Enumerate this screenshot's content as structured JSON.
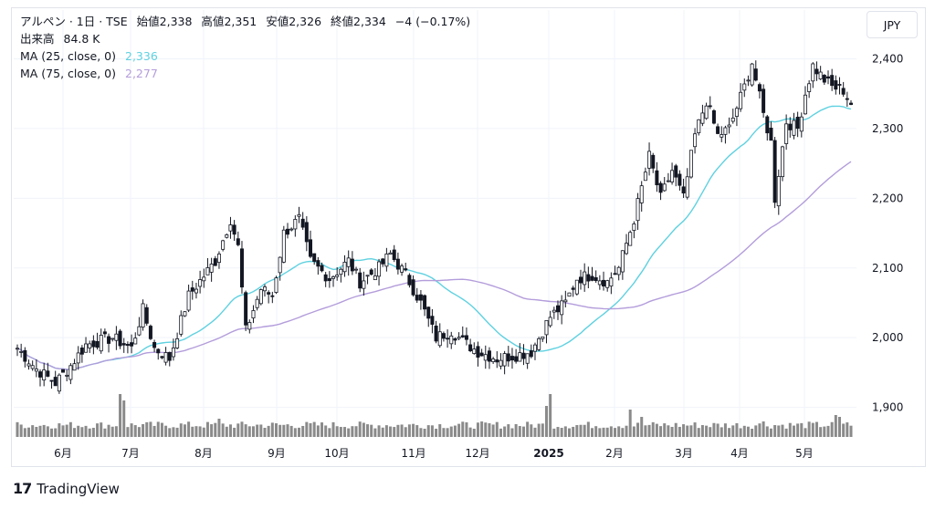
{
  "legend": {
    "symbol": "アルペン · 1日 · TSE",
    "open_label": "始値",
    "open": "2,338",
    "high_label": "高値",
    "high": "2,351",
    "low_label": "安値",
    "low": "2,326",
    "close_label": "終値",
    "close": "2,334",
    "change": "−4 (−0.17%)",
    "volume_label": "出来高",
    "volume": "84.8 K",
    "ma25_label": "MA (25, close, 0)",
    "ma25_value": "2,336",
    "ma75_label": "MA (75, close, 0)",
    "ma75_value": "2,277"
  },
  "currency": "JPY",
  "footer": {
    "logo_mark": "17",
    "logo_text": "TradingView"
  },
  "colors": {
    "candle_up": "#ffffff",
    "candle_down": "#131722",
    "ma25": "#5fd1e0",
    "ma75": "#b39ddb",
    "volume": "#8a8a8a",
    "grid": "#f0f3fa"
  },
  "chart_data": {
    "type": "candlestick",
    "title": "アルペン · 1日 · TSE",
    "y_ticks": [
      1900,
      2000,
      2100,
      2200,
      2300,
      2400
    ],
    "y_tick_labels": [
      "1,900",
      "2,000",
      "2,100",
      "2,200",
      "2,300",
      "2,400"
    ],
    "ylim": [
      1855,
      2470
    ],
    "x_tick_labels": [
      {
        "label": "6月",
        "month_index": 0
      },
      {
        "label": "7月",
        "month_index": 1
      },
      {
        "label": "8月",
        "month_index": 2
      },
      {
        "label": "9月",
        "month_index": 3
      },
      {
        "label": "10月",
        "month_index": 4
      },
      {
        "label": "11月",
        "month_index": 5
      },
      {
        "label": "12月",
        "month_index": 6
      },
      {
        "label": "2025",
        "month_index": 7,
        "bold": true
      },
      {
        "label": "2月",
        "month_index": 8
      },
      {
        "label": "3月",
        "month_index": 9
      },
      {
        "label": "4月",
        "month_index": 10
      },
      {
        "label": "5月",
        "month_index": 11
      }
    ],
    "price_path": [
      [
        0,
        1985
      ],
      [
        5,
        1955
      ],
      [
        10,
        1935
      ],
      [
        14,
        1960
      ],
      [
        18,
        1990
      ],
      [
        25,
        2000
      ],
      [
        30,
        1985
      ],
      [
        33,
        2040
      ],
      [
        36,
        1985
      ],
      [
        40,
        1970
      ],
      [
        45,
        2060
      ],
      [
        52,
        2110
      ],
      [
        56,
        2170
      ],
      [
        58,
        2130
      ],
      [
        60,
        2010
      ],
      [
        64,
        2070
      ],
      [
        67,
        2060
      ],
      [
        70,
        2150
      ],
      [
        74,
        2170
      ],
      [
        77,
        2110
      ],
      [
        82,
        2085
      ],
      [
        87,
        2110
      ],
      [
        90,
        2080
      ],
      [
        95,
        2100
      ],
      [
        98,
        2120
      ],
      [
        102,
        2090
      ],
      [
        106,
        2050
      ],
      [
        110,
        2000
      ],
      [
        114,
        2010
      ],
      [
        117,
        1995
      ],
      [
        121,
        1980
      ],
      [
        126,
        1970
      ],
      [
        131,
        1975
      ],
      [
        135,
        1980
      ],
      [
        140,
        2030
      ],
      [
        144,
        2050
      ],
      [
        147,
        2085
      ],
      [
        151,
        2090
      ],
      [
        155,
        2080
      ],
      [
        158,
        2100
      ],
      [
        162,
        2170
      ],
      [
        166,
        2260
      ],
      [
        169,
        2200
      ],
      [
        172,
        2240
      ],
      [
        175,
        2200
      ],
      [
        178,
        2290
      ],
      [
        181,
        2340
      ],
      [
        184,
        2290
      ],
      [
        187,
        2300
      ],
      [
        191,
        2360
      ],
      [
        193,
        2395
      ],
      [
        196,
        2320
      ],
      [
        198,
        2280
      ],
      [
        199,
        2200
      ],
      [
        202,
        2310
      ],
      [
        205,
        2300
      ],
      [
        207,
        2350
      ],
      [
        209,
        2390
      ],
      [
        212,
        2370
      ],
      [
        214,
        2360
      ],
      [
        217,
        2355
      ],
      [
        219,
        2336
      ]
    ],
    "ma25_last": 2336,
    "ma75_last": 2277,
    "volume_spikes": [
      {
        "day": 27,
        "scale": 4.5
      },
      {
        "day": 28,
        "scale": 3.8
      },
      {
        "day": 53,
        "scale": 1.8
      },
      {
        "day": 139,
        "scale": 3.2
      },
      {
        "day": 140,
        "scale": 4.5
      },
      {
        "day": 161,
        "scale": 2.8
      },
      {
        "day": 164,
        "scale": 2.0
      },
      {
        "day": 196,
        "scale": 1.5
      },
      {
        "day": 215,
        "scale": 2.2
      },
      {
        "day": 216,
        "scale": 2.0
      }
    ],
    "num_days": 220
  }
}
